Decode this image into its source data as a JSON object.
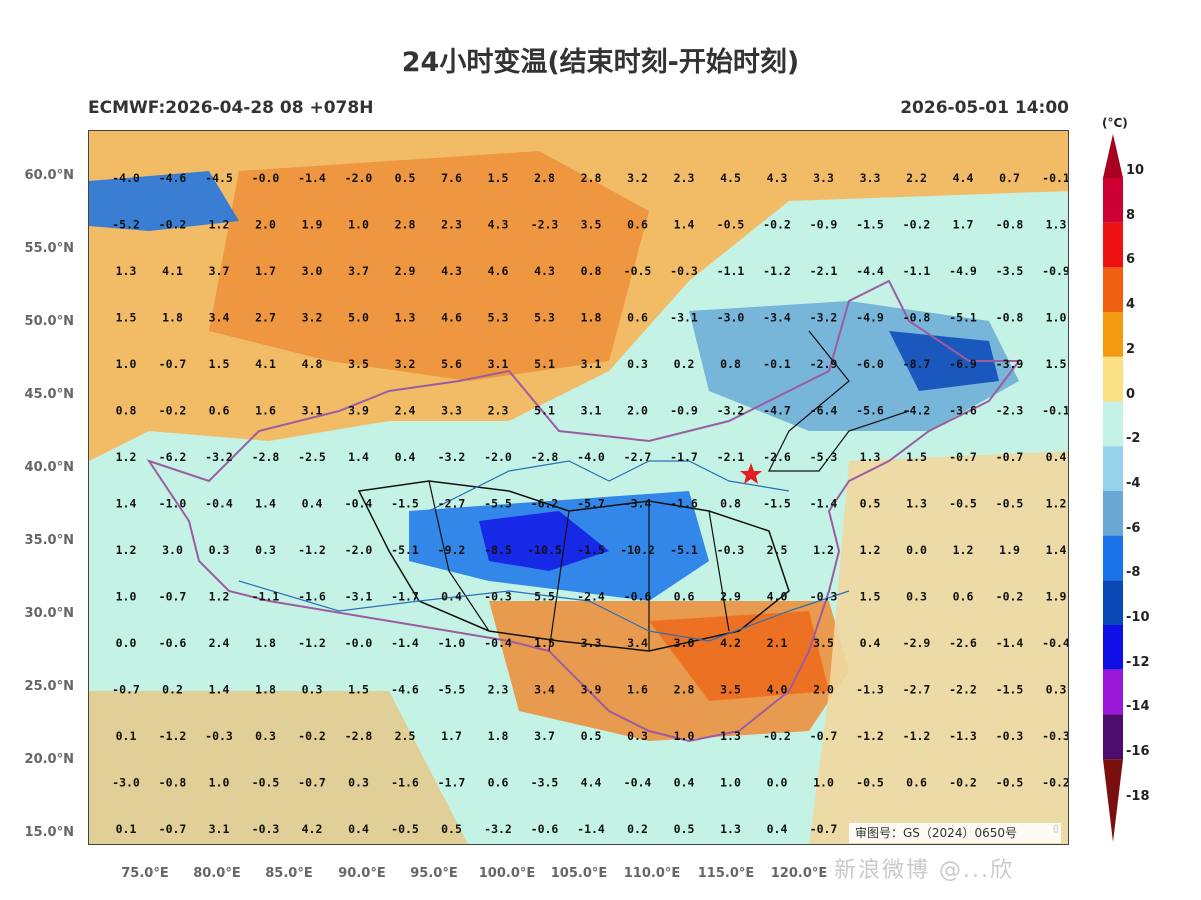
{
  "header": {
    "title": "24小时变温(结束时刻-开始时刻)",
    "model_run": "ECMWF:2026-04-28 08 +078H",
    "valid_time": "2026-05-01 14:00"
  },
  "axes": {
    "y_labels": [
      "60.0°N",
      "55.0°N",
      "50.0°N",
      "45.0°N",
      "40.0°N",
      "35.0°N",
      "30.0°N",
      "25.0°N",
      "20.0°N",
      "15.0°N"
    ],
    "x_labels": [
      "75.0°E",
      "80.0°E",
      "85.0°E",
      "90.0°E",
      "95.0°E",
      "100.0°E",
      "105.0°E",
      "110.0°E",
      "115.0°E",
      "120.0°E"
    ]
  },
  "colorbar": {
    "unit": "(°C)",
    "labels": [
      "10",
      "8",
      "6",
      "4",
      "2",
      "0",
      "-2",
      "-4",
      "-6",
      "-8",
      "-10",
      "-12",
      "-14",
      "-16",
      "-18"
    ],
    "colors": [
      "#a8001f",
      "#cc0033",
      "#ee1111",
      "#f06010",
      "#f39a10",
      "#fbdf84",
      "#c4f3e6",
      "#96d2ec",
      "#6aa9d6",
      "#1a73e8",
      "#0a48b8",
      "#1010e6",
      "#9b16d8",
      "#4e0b6e",
      "#7a0f0f"
    ]
  },
  "grid_values": [
    [
      "-4.0",
      "-4.6",
      "-4.5",
      "-0.0",
      "-1.4",
      "-2.0",
      "0.5",
      "7.6",
      "1.5",
      "2.8",
      "2.8",
      "3.2",
      "2.3",
      "4.5",
      "4.3",
      "3.3",
      "3.3",
      "2.2",
      "4.4",
      "0.7",
      "-0.1"
    ],
    [
      "-5.2",
      "-0.2",
      "1.2",
      "2.0",
      "1.9",
      "1.0",
      "2.8",
      "2.3",
      "4.3",
      "-2.3",
      "3.5",
      "0.6",
      "1.4",
      "-0.5",
      "-0.2",
      "-0.9",
      "-1.5",
      "-0.2",
      "1.7",
      "-0.8",
      "1.3"
    ],
    [
      "1.3",
      "4.1",
      "3.7",
      "1.7",
      "3.0",
      "3.7",
      "2.9",
      "4.3",
      "4.6",
      "4.3",
      "0.8",
      "-0.5",
      "-0.3",
      "-1.1",
      "-1.2",
      "-2.1",
      "-4.4",
      "-1.1",
      "-4.9",
      "-3.5",
      "-0.9"
    ],
    [
      "1.5",
      "1.8",
      "3.4",
      "2.7",
      "3.2",
      "5.0",
      "1.3",
      "4.6",
      "5.3",
      "5.3",
      "1.8",
      "0.6",
      "-3.1",
      "-3.0",
      "-3.4",
      "-3.2",
      "-4.9",
      "-0.8",
      "-5.1",
      "-0.8",
      "1.0"
    ],
    [
      "1.0",
      "-0.7",
      "1.5",
      "4.1",
      "4.8",
      "3.5",
      "3.2",
      "5.6",
      "3.1",
      "5.1",
      "3.1",
      "0.3",
      "0.2",
      "0.8",
      "-0.1",
      "-2.9",
      "-6.0",
      "-8.7",
      "-6.9",
      "-3.9",
      "1.5"
    ],
    [
      "0.8",
      "-0.2",
      "0.6",
      "1.6",
      "3.1",
      "3.9",
      "2.4",
      "3.3",
      "2.3",
      "5.1",
      "3.1",
      "2.0",
      "-0.9",
      "-3.2",
      "-4.7",
      "-6.4",
      "-5.6",
      "-4.2",
      "-3.6",
      "-2.3",
      "-0.1"
    ],
    [
      "1.2",
      "-6.2",
      "-3.2",
      "-2.8",
      "-2.5",
      "1.4",
      "0.4",
      "-3.2",
      "-2.0",
      "-2.8",
      "-4.0",
      "-2.7",
      "-1.7",
      "-2.1",
      "-2.6",
      "-5.3",
      "1.3",
      "1.5",
      "-0.7",
      "-0.7",
      "0.4"
    ],
    [
      "1.4",
      "-1.0",
      "-0.4",
      "1.4",
      "0.4",
      "-0.4",
      "-1.5",
      "-2.7",
      "-5.5",
      "-6.2",
      "-5.7",
      "-3.4",
      "-1.6",
      "0.8",
      "-1.5",
      "-1.4",
      "0.5",
      "1.3",
      "-0.5",
      "-0.5",
      "1.2"
    ],
    [
      "1.2",
      "3.0",
      "0.3",
      "0.3",
      "-1.2",
      "-2.0",
      "-5.1",
      "-9.2",
      "-8.5",
      "-10.5",
      "-1.5",
      "-10.2",
      "-5.1",
      "-0.3",
      "2.5",
      "1.2",
      "1.2",
      "0.0",
      "1.2",
      "1.9",
      "1.4"
    ],
    [
      "1.0",
      "-0.7",
      "1.2",
      "-1.1",
      "-1.6",
      "-3.1",
      "-1.7",
      "0.4",
      "-0.3",
      "5.5",
      "-2.4",
      "-0.6",
      "0.6",
      "2.9",
      "4.0",
      "-0.3",
      "1.5",
      "0.3",
      "0.6",
      "-0.2",
      "1.9"
    ],
    [
      "0.0",
      "-0.6",
      "2.4",
      "1.8",
      "-1.2",
      "-0.0",
      "-1.4",
      "-1.0",
      "-0.4",
      "1.5",
      "3.3",
      "3.4",
      "3.0",
      "4.2",
      "2.1",
      "3.5",
      "0.4",
      "-2.9",
      "-2.6",
      "-1.4",
      "-0.4"
    ],
    [
      "-0.7",
      "0.2",
      "1.4",
      "1.8",
      "0.3",
      "1.5",
      "-4.6",
      "-5.5",
      "2.3",
      "3.4",
      "3.9",
      "1.6",
      "2.8",
      "3.5",
      "4.0",
      "2.0",
      "-1.3",
      "-2.7",
      "-2.2",
      "-1.5",
      "0.3"
    ],
    [
      "0.1",
      "-1.2",
      "-0.3",
      "0.3",
      "-0.2",
      "-2.8",
      "2.5",
      "1.7",
      "1.8",
      "3.7",
      "0.5",
      "0.3",
      "1.0",
      "1.3",
      "-0.2",
      "-0.7",
      "-1.2",
      "-1.2",
      "-1.3",
      "-0.3",
      "-0.3"
    ],
    [
      "-3.0",
      "-0.8",
      "1.0",
      "-0.5",
      "-0.7",
      "0.3",
      "-1.6",
      "-1.7",
      "0.6",
      "-3.5",
      "4.4",
      "-0.4",
      "0.4",
      "1.0",
      "0.0",
      "1.0",
      "-0.5",
      "0.6",
      "-0.2",
      "-0.5",
      "-0.2"
    ],
    [
      "0.1",
      "-0.7",
      "3.1",
      "-0.3",
      "4.2",
      "0.4",
      "-0.5",
      "0.5",
      "-3.2",
      "-0.6",
      "-1.4",
      "0.2",
      "0.5",
      "1.3",
      "0.4",
      "-0.7",
      "",
      "",
      "",
      "",
      "0"
    ]
  ],
  "approval_number": "审图号：GS（2024）0650号",
  "watermark": "新浪微博 @...欣"
}
